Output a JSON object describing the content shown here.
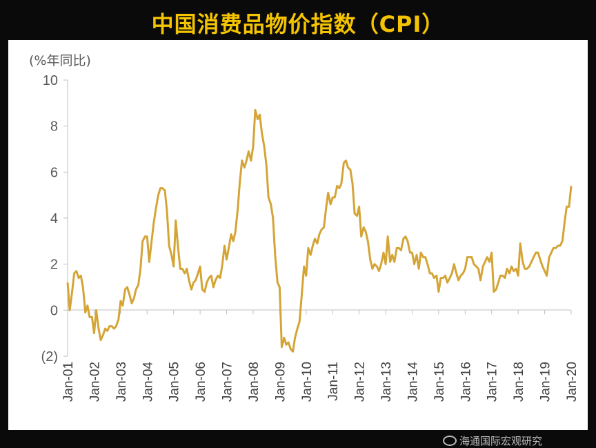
{
  "chart_data": {
    "type": "line",
    "title": "中国消费品物价指数（CPI）",
    "ylabel": "(%年同比)",
    "ylim": [
      -2,
      10
    ],
    "yticks": [
      10,
      8,
      6,
      4,
      2,
      0,
      -2
    ],
    "ytick_labels": [
      "10",
      "8",
      "6",
      "4",
      "2",
      "0",
      "(2)"
    ],
    "xlim": [
      2001.0,
      2020.0
    ],
    "xtick_labels": [
      "Jan-01",
      "Jan-02",
      "Jan-03",
      "Jan-04",
      "Jan-05",
      "Jan-06",
      "Jan-07",
      "Jan-08",
      "Jan-09",
      "Jan-10",
      "Jan-11",
      "Jan-12",
      "Jan-13",
      "Jan-14",
      "Jan-15",
      "Jan-16",
      "Jan-17",
      "Jan-18",
      "Jan-19",
      "Jan-20"
    ],
    "line_color": "#d4a536",
    "grid": false,
    "series": [
      {
        "x": [
          2001.0,
          2001.08,
          2001.17,
          2001.25,
          2001.33,
          2001.42,
          2001.5,
          2001.58,
          2001.67,
          2001.75,
          2001.83,
          2001.92,
          2002.0,
          2002.08,
          2002.17,
          2002.25,
          2002.33,
          2002.42,
          2002.5,
          2002.58,
          2002.67,
          2002.75,
          2002.83,
          2002.92,
          2003.0,
          2003.08,
          2003.17,
          2003.25,
          2003.33,
          2003.42,
          2003.5,
          2003.58,
          2003.67,
          2003.75,
          2003.83,
          2003.92,
          2004.0,
          2004.08,
          2004.17,
          2004.25,
          2004.33,
          2004.42,
          2004.5,
          2004.58,
          2004.67,
          2004.75,
          2004.83,
          2004.92,
          2005.0,
          2005.08,
          2005.17,
          2005.25,
          2005.33,
          2005.42,
          2005.5,
          2005.58,
          2005.67,
          2005.75,
          2005.83,
          2005.92,
          2006.0,
          2006.08,
          2006.17,
          2006.25,
          2006.33,
          2006.42,
          2006.5,
          2006.58,
          2006.67,
          2006.75,
          2006.83,
          2006.92,
          2007.0,
          2007.08,
          2007.17,
          2007.25,
          2007.33,
          2007.42,
          2007.5,
          2007.58,
          2007.67,
          2007.75,
          2007.83,
          2007.92,
          2008.0,
          2008.08,
          2008.17,
          2008.25,
          2008.33,
          2008.42,
          2008.5,
          2008.58,
          2008.67,
          2008.75,
          2008.83,
          2008.92,
          2009.0,
          2009.08,
          2009.17,
          2009.25,
          2009.33,
          2009.42,
          2009.5,
          2009.58,
          2009.67,
          2009.75,
          2009.83,
          2009.92,
          2010.0,
          2010.08,
          2010.17,
          2010.25,
          2010.33,
          2010.42,
          2010.5,
          2010.58,
          2010.67,
          2010.75,
          2010.83,
          2010.92,
          2011.0,
          2011.08,
          2011.17,
          2011.25,
          2011.33,
          2011.42,
          2011.5,
          2011.58,
          2011.67,
          2011.75,
          2011.83,
          2011.92,
          2012.0,
          2012.08,
          2012.17,
          2012.25,
          2012.33,
          2012.42,
          2012.5,
          2012.58,
          2012.67,
          2012.75,
          2012.83,
          2012.92,
          2013.0,
          2013.08,
          2013.17,
          2013.25,
          2013.33,
          2013.42,
          2013.5,
          2013.58,
          2013.67,
          2013.75,
          2013.83,
          2013.92,
          2014.0,
          2014.08,
          2014.17,
          2014.25,
          2014.33,
          2014.42,
          2014.5,
          2014.58,
          2014.67,
          2014.75,
          2014.83,
          2014.92,
          2015.0,
          2015.08,
          2015.17,
          2015.25,
          2015.33,
          2015.42,
          2015.5,
          2015.58,
          2015.67,
          2015.75,
          2015.83,
          2015.92,
          2016.0,
          2016.08,
          2016.17,
          2016.25,
          2016.33,
          2016.42,
          2016.5,
          2016.58,
          2016.67,
          2016.75,
          2016.83,
          2016.92,
          2017.0,
          2017.08,
          2017.17,
          2017.25,
          2017.33,
          2017.42,
          2017.5,
          2017.58,
          2017.67,
          2017.75,
          2017.83,
          2017.92,
          2018.0,
          2018.08,
          2018.17,
          2018.25,
          2018.33,
          2018.42,
          2018.5,
          2018.58,
          2018.67,
          2018.75,
          2018.83,
          2018.92,
          2019.0,
          2019.08,
          2019.17,
          2019.25,
          2019.33,
          2019.42,
          2019.5,
          2019.58,
          2019.67,
          2019.75,
          2019.83,
          2019.92,
          2020.0
        ],
        "y": [
          1.2,
          0.0,
          0.8,
          1.6,
          1.7,
          1.4,
          1.5,
          1.0,
          -0.1,
          0.2,
          -0.3,
          -0.3,
          -1.0,
          0.0,
          -0.8,
          -1.3,
          -1.1,
          -0.8,
          -0.9,
          -0.7,
          -0.7,
          -0.8,
          -0.7,
          -0.4,
          0.4,
          0.2,
          0.9,
          1.0,
          0.7,
          0.3,
          0.5,
          0.9,
          1.1,
          1.8,
          3.0,
          3.2,
          3.2,
          2.1,
          3.0,
          3.8,
          4.4,
          5.0,
          5.3,
          5.3,
          5.2,
          4.3,
          2.8,
          2.4,
          1.9,
          3.9,
          2.7,
          1.8,
          1.8,
          1.6,
          1.8,
          1.3,
          0.9,
          1.2,
          1.3,
          1.6,
          1.9,
          0.9,
          0.8,
          1.2,
          1.4,
          1.5,
          1.0,
          1.3,
          1.5,
          1.4,
          1.9,
          2.8,
          2.2,
          2.7,
          3.3,
          3.0,
          3.4,
          4.4,
          5.6,
          6.5,
          6.2,
          6.5,
          6.9,
          6.5,
          7.1,
          8.7,
          8.3,
          8.5,
          7.7,
          7.1,
          6.3,
          4.9,
          4.6,
          4.0,
          2.4,
          1.2,
          1.0,
          -1.6,
          -1.2,
          -1.5,
          -1.4,
          -1.7,
          -1.8,
          -1.2,
          -0.8,
          -0.5,
          0.6,
          1.9,
          1.5,
          2.7,
          2.4,
          2.8,
          3.1,
          2.9,
          3.3,
          3.5,
          3.6,
          4.4,
          5.1,
          4.6,
          4.9,
          4.9,
          5.4,
          5.3,
          5.5,
          6.4,
          6.5,
          6.2,
          6.1,
          5.5,
          4.2,
          4.1,
          4.5,
          3.2,
          3.6,
          3.4,
          3.0,
          2.2,
          1.8,
          2.0,
          1.9,
          1.7,
          2.0,
          2.5,
          2.0,
          3.2,
          2.1,
          2.4,
          2.1,
          2.7,
          2.7,
          2.6,
          3.1,
          3.2,
          3.0,
          2.5,
          2.5,
          2.0,
          2.4,
          1.8,
          2.5,
          2.3,
          2.3,
          2.0,
          1.6,
          1.6,
          1.4,
          1.5,
          0.8,
          1.4,
          1.4,
          1.5,
          1.2,
          1.4,
          1.6,
          2.0,
          1.6,
          1.3,
          1.5,
          1.6,
          1.8,
          2.3,
          2.3,
          2.3,
          2.0,
          1.9,
          1.8,
          1.3,
          1.9,
          2.1,
          2.3,
          2.1,
          2.5,
          0.8,
          0.9,
          1.2,
          1.5,
          1.5,
          1.4,
          1.8,
          1.6,
          1.9,
          1.7,
          1.8,
          1.5,
          2.9,
          2.1,
          1.8,
          1.8,
          1.9,
          2.1,
          2.3,
          2.5,
          2.5,
          2.2,
          1.9,
          1.7,
          1.5,
          2.3,
          2.5,
          2.7,
          2.7,
          2.8,
          2.8,
          3.0,
          3.8,
          4.5,
          4.5,
          5.4
        ]
      }
    ]
  },
  "watermark": "海通国际宏观研究"
}
